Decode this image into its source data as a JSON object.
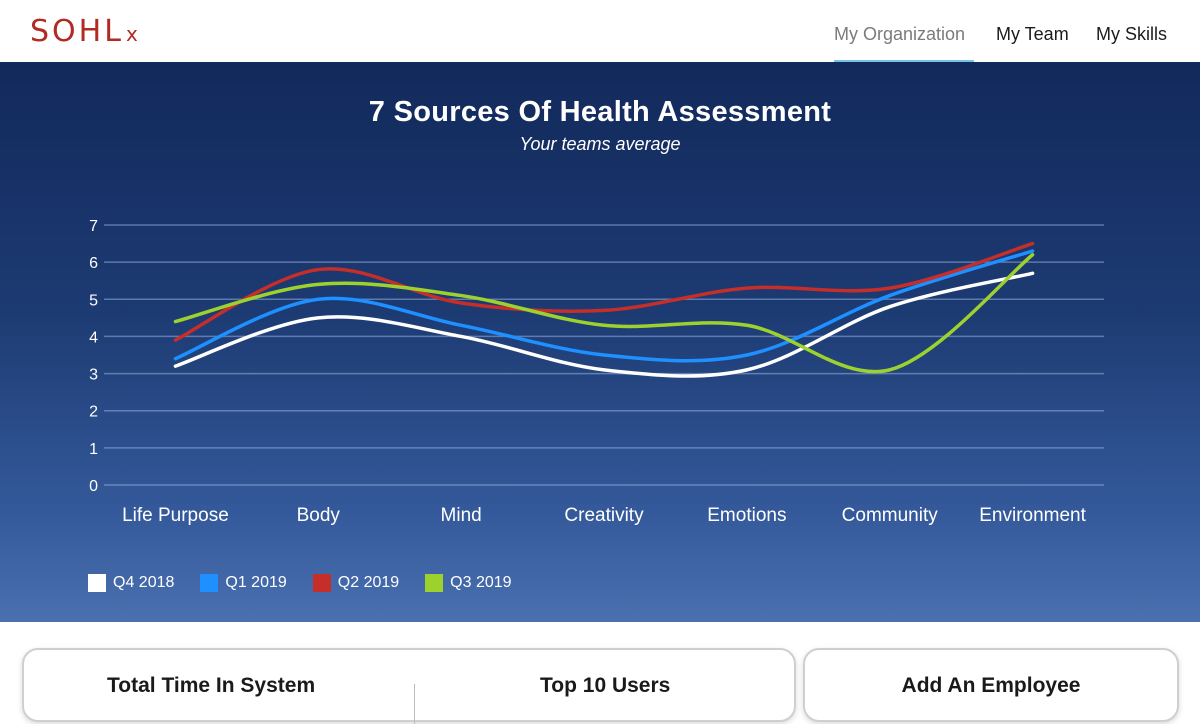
{
  "brand": {
    "logo_main": "SOHL",
    "logo_sub": "x",
    "color": "#b12a24"
  },
  "nav": {
    "items": [
      {
        "label": "My Organization",
        "active": true
      },
      {
        "label": "My Team",
        "active": false
      },
      {
        "label": "My Skills",
        "active": false
      }
    ],
    "underline_color": "#7cc1e6"
  },
  "hero": {
    "title": "7 Sources Of Health Assessment",
    "subtitle": "Your teams average"
  },
  "chart_data": {
    "type": "line",
    "title": "7 Sources Of Health Assessment",
    "subtitle": "Your teams average",
    "categories": [
      "Life Purpose",
      "Body",
      "Mind",
      "Creativity",
      "Emotions",
      "Community",
      "Environment"
    ],
    "ylim": [
      0,
      7
    ],
    "yticks": [
      0,
      1,
      2,
      3,
      4,
      5,
      6,
      7
    ],
    "grid": true,
    "legend_position": "bottom-left",
    "series": [
      {
        "name": "Q4 2018",
        "color": "#ffffff",
        "values": [
          3.2,
          4.5,
          4.0,
          3.1,
          3.1,
          4.8,
          5.7
        ]
      },
      {
        "name": "Q1 2019",
        "color": "#1e90ff",
        "values": [
          3.4,
          5.0,
          4.3,
          3.5,
          3.5,
          5.1,
          6.3
        ]
      },
      {
        "name": "Q2 2019",
        "color": "#c62e2a",
        "values": [
          3.9,
          5.8,
          4.9,
          4.7,
          5.3,
          5.3,
          6.5
        ]
      },
      {
        "name": "Q3 2019",
        "color": "#9dd22e",
        "values": [
          4.4,
          5.4,
          5.1,
          4.3,
          4.3,
          3.1,
          6.2
        ]
      }
    ]
  },
  "cards": {
    "total_time_title": "Total Time In System",
    "top_users_title": "Top 10 Users",
    "add_employee_title": "Add An Employee"
  }
}
